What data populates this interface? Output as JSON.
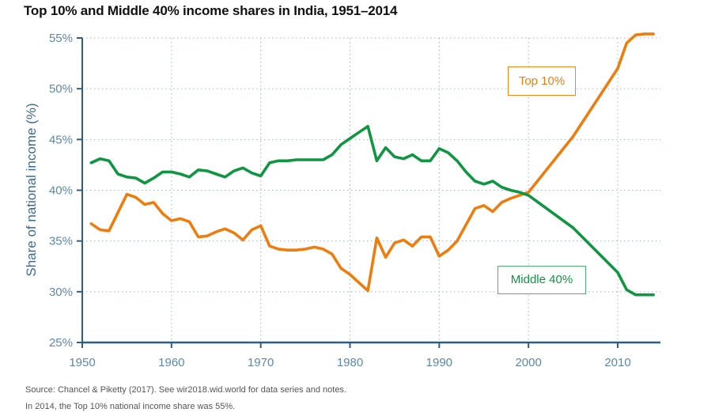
{
  "chart_data": {
    "type": "line",
    "title": "Top 10% and Middle 40% income shares in India, 1951–2014",
    "xlabel": "",
    "ylabel": "Share of national income (%)",
    "xlim": [
      1950,
      2015
    ],
    "ylim": [
      25,
      55
    ],
    "grid": true,
    "x_ticks": [
      1950,
      1960,
      1970,
      1980,
      1990,
      2000,
      2010
    ],
    "x_tick_labels": [
      "1950",
      "1960",
      "1970",
      "1980",
      "1990",
      "2000",
      "2010"
    ],
    "y_ticks": [
      25,
      30,
      35,
      40,
      45,
      50,
      55
    ],
    "y_tick_labels": [
      "25%",
      "30%",
      "35%",
      "40%",
      "45%",
      "50%",
      "55%"
    ],
    "series": [
      {
        "name": "Top 10%",
        "color": "#ee7d10",
        "label_position": "upper-right",
        "points": [
          [
            1951,
            36.7
          ],
          [
            1952,
            36.1
          ],
          [
            1953,
            36.0
          ],
          [
            1954,
            37.8
          ],
          [
            1955,
            39.6
          ],
          [
            1956,
            39.3
          ],
          [
            1957,
            38.6
          ],
          [
            1958,
            38.8
          ],
          [
            1959,
            37.7
          ],
          [
            1960,
            37.0
          ],
          [
            1961,
            37.2
          ],
          [
            1962,
            36.9
          ],
          [
            1963,
            35.4
          ],
          [
            1964,
            35.5
          ],
          [
            1965,
            35.9
          ],
          [
            1966,
            36.2
          ],
          [
            1967,
            35.8
          ],
          [
            1968,
            35.1
          ],
          [
            1969,
            36.1
          ],
          [
            1970,
            36.5
          ],
          [
            1971,
            34.5
          ],
          [
            1972,
            34.2
          ],
          [
            1973,
            34.1
          ],
          [
            1974,
            34.1
          ],
          [
            1975,
            34.2
          ],
          [
            1976,
            34.4
          ],
          [
            1977,
            34.2
          ],
          [
            1978,
            33.7
          ],
          [
            1979,
            32.3
          ],
          [
            1980,
            31.7
          ],
          [
            1981,
            30.9
          ],
          [
            1982,
            30.1
          ],
          [
            1983,
            35.3
          ],
          [
            1984,
            33.4
          ],
          [
            1985,
            34.8
          ],
          [
            1986,
            35.1
          ],
          [
            1987,
            34.5
          ],
          [
            1988,
            35.4
          ],
          [
            1989,
            35.4
          ],
          [
            1990,
            33.5
          ],
          [
            1991,
            34.1
          ],
          [
            1992,
            35.0
          ],
          [
            1993,
            36.6
          ],
          [
            1994,
            38.2
          ],
          [
            1995,
            38.5
          ],
          [
            1996,
            37.9
          ],
          [
            1997,
            38.8
          ],
          [
            1998,
            39.2
          ],
          [
            1999,
            39.5
          ],
          [
            2000,
            39.8
          ],
          [
            2005,
            45.3
          ],
          [
            2010,
            52.0
          ],
          [
            2011,
            54.5
          ],
          [
            2012,
            55.3
          ],
          [
            2013,
            55.4
          ],
          [
            2014,
            55.4
          ]
        ]
      },
      {
        "name": "Middle 40%",
        "color": "#109642",
        "label_position": "lower-right",
        "points": [
          [
            1951,
            42.7
          ],
          [
            1952,
            43.1
          ],
          [
            1953,
            42.9
          ],
          [
            1954,
            41.6
          ],
          [
            1955,
            41.3
          ],
          [
            1956,
            41.2
          ],
          [
            1957,
            40.7
          ],
          [
            1958,
            41.2
          ],
          [
            1959,
            41.8
          ],
          [
            1960,
            41.8
          ],
          [
            1961,
            41.6
          ],
          [
            1962,
            41.3
          ],
          [
            1963,
            42.0
          ],
          [
            1964,
            41.9
          ],
          [
            1965,
            41.6
          ],
          [
            1966,
            41.3
          ],
          [
            1967,
            41.9
          ],
          [
            1968,
            42.2
          ],
          [
            1969,
            41.7
          ],
          [
            1970,
            41.4
          ],
          [
            1971,
            42.7
          ],
          [
            1972,
            42.9
          ],
          [
            1973,
            42.9
          ],
          [
            1974,
            43.0
          ],
          [
            1975,
            43.0
          ],
          [
            1976,
            43.0
          ],
          [
            1977,
            43.0
          ],
          [
            1978,
            43.5
          ],
          [
            1979,
            44.5
          ],
          [
            1980,
            45.1
          ],
          [
            1981,
            45.7
          ],
          [
            1982,
            46.3
          ],
          [
            1983,
            42.9
          ],
          [
            1984,
            44.2
          ],
          [
            1985,
            43.3
          ],
          [
            1986,
            43.1
          ],
          [
            1987,
            43.5
          ],
          [
            1988,
            42.9
          ],
          [
            1989,
            42.9
          ],
          [
            1990,
            44.1
          ],
          [
            1991,
            43.7
          ],
          [
            1992,
            42.9
          ],
          [
            1993,
            41.8
          ],
          [
            1994,
            40.9
          ],
          [
            1995,
            40.6
          ],
          [
            1996,
            40.9
          ],
          [
            1997,
            40.3
          ],
          [
            1998,
            40.0
          ],
          [
            1999,
            39.8
          ],
          [
            2000,
            39.5
          ],
          [
            2005,
            36.3
          ],
          [
            2010,
            31.9
          ],
          [
            2011,
            30.2
          ],
          [
            2012,
            29.7
          ],
          [
            2013,
            29.7
          ],
          [
            2014,
            29.7
          ]
        ]
      }
    ],
    "legend": [
      {
        "label": "Top 10%",
        "placement": "top-right"
      },
      {
        "label": "Middle 40%",
        "placement": "bottom-right"
      }
    ],
    "source_line_1": "Source: Chancel & Piketty (2017). See wir2018.wid.world for data series and notes.",
    "source_line_2": "In 2014, the Top 10% national income share was 55%."
  }
}
